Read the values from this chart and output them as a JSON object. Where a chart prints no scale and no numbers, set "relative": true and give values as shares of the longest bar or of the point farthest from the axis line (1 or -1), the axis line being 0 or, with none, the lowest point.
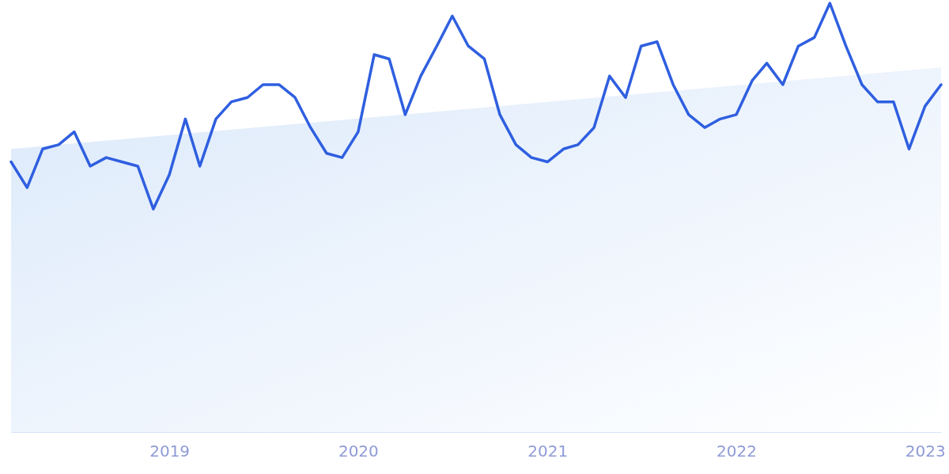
{
  "chart_data": {
    "type": "line",
    "relative": true,
    "xlim": [
      "2018-03",
      "2023-02"
    ],
    "xticks": [
      "2019",
      "2020",
      "2021",
      "2022",
      "2023"
    ],
    "x": [
      "2018-03",
      "2018-04",
      "2018-05",
      "2018-06",
      "2018-07",
      "2018-08",
      "2018-09",
      "2018-10",
      "2018-11",
      "2018-12",
      "2019-01",
      "2019-02",
      "2019-03",
      "2019-04",
      "2019-05",
      "2019-06",
      "2019-07",
      "2019-08",
      "2019-09",
      "2019-10",
      "2019-11",
      "2019-12",
      "2020-01",
      "2020-02",
      "2020-03",
      "2020-04",
      "2020-05",
      "2020-06",
      "2020-07",
      "2020-08",
      "2020-09",
      "2020-10",
      "2020-11",
      "2020-12",
      "2021-01",
      "2021-02",
      "2021-03",
      "2021-04",
      "2021-05",
      "2021-06",
      "2021-07",
      "2021-08",
      "2021-09",
      "2021-10",
      "2021-11",
      "2021-12",
      "2022-01",
      "2022-02",
      "2022-03",
      "2022-04",
      "2022-05",
      "2022-06",
      "2022-07",
      "2022-08",
      "2022-09",
      "2022-10",
      "2022-11",
      "2022-12",
      "2023-01",
      "2023-02"
    ],
    "series": [
      {
        "type": "area",
        "color": "#d8e7fa",
        "x": [
          "2018-03",
          "2023-02"
        ],
        "values": [
          0.66,
          0.85
        ]
      },
      {
        "color": "#2f5fe0",
        "values": [
          0.63,
          0.57,
          0.66,
          0.67,
          0.7,
          0.62,
          0.64,
          0.63,
          0.62,
          0.52,
          0.6,
          0.73,
          0.62,
          0.73,
          0.77,
          0.78,
          0.81,
          0.81,
          0.78,
          0.71,
          0.65,
          0.64,
          0.7,
          0.88,
          0.87,
          0.74,
          0.83,
          0.9,
          0.97,
          0.9,
          0.87,
          0.74,
          0.67,
          0.64,
          0.63,
          0.66,
          0.67,
          0.71,
          0.83,
          0.78,
          0.9,
          0.91,
          0.81,
          0.74,
          0.71,
          0.73,
          0.74,
          0.82,
          0.86,
          0.81,
          0.9,
          0.92,
          1.0,
          0.9,
          0.81,
          0.77,
          0.77,
          0.66,
          0.76,
          0.81
        ]
      }
    ]
  }
}
